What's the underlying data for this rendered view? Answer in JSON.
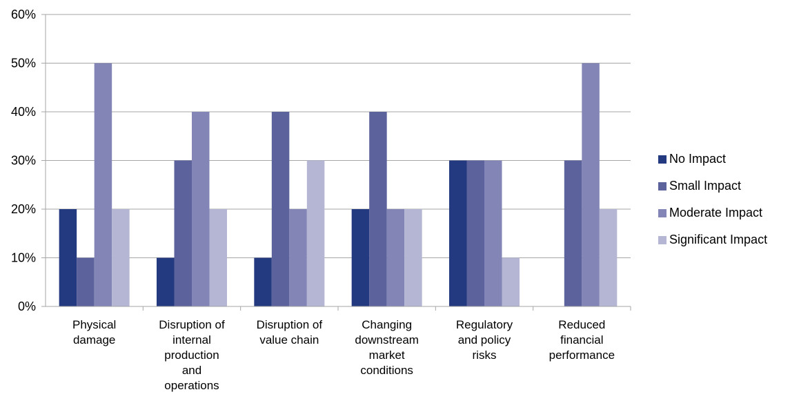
{
  "chart_data": {
    "type": "bar",
    "categories": [
      [
        "Physical",
        "damage"
      ],
      [
        "Disruption of",
        "internal",
        "production",
        "and",
        "operations"
      ],
      [
        "Disruption of",
        "value chain"
      ],
      [
        "Changing",
        "downstream",
        "market",
        "conditions"
      ],
      [
        "Regulatory",
        "and policy",
        "risks"
      ],
      [
        "Reduced",
        "financial",
        "performance"
      ]
    ],
    "series": [
      {
        "name": "No Impact",
        "color": "#243a80",
        "values": [
          20,
          10,
          10,
          20,
          30,
          0
        ]
      },
      {
        "name": "Small Impact",
        "color": "#5b629c",
        "values": [
          10,
          30,
          40,
          40,
          30,
          30
        ]
      },
      {
        "name": "Moderate Impact",
        "color": "#8285b6",
        "values": [
          50,
          40,
          20,
          20,
          30,
          50
        ]
      },
      {
        "name": "Significant Impact",
        "color": "#b4b6d4",
        "values": [
          20,
          20,
          30,
          20,
          10,
          20
        ]
      }
    ],
    "ylim": [
      0,
      60
    ],
    "yticks": [
      "0%",
      "10%",
      "20%",
      "30%",
      "40%",
      "50%",
      "60%"
    ],
    "grid": true,
    "legend": "right"
  }
}
